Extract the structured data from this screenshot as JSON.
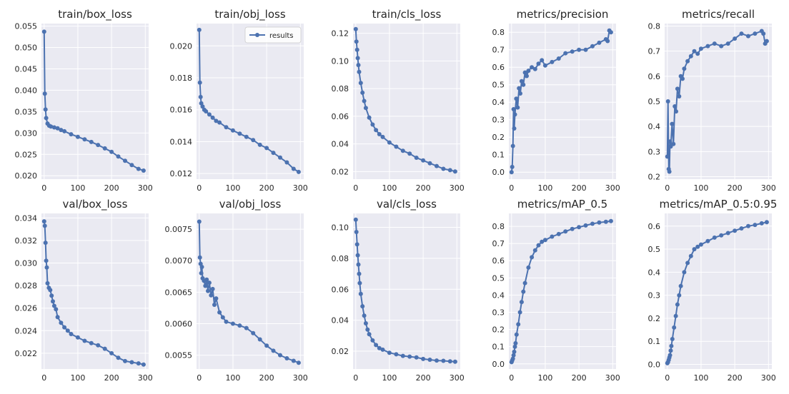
{
  "figure": {
    "background": "#ffffff",
    "panel_bg": "#eaeaf2",
    "grid_color": "#ffffff",
    "line_color": "#4c72b0",
    "text_color": "#262626",
    "grid": true,
    "legend": {
      "label": "results",
      "placement": "upper-right",
      "panel": "train/obj_loss"
    }
  },
  "chart_data": [
    {
      "type": "line",
      "title": "train/box_loss",
      "series": [
        {
          "name": "results",
          "x": [
            0,
            2,
            4,
            6,
            10,
            15,
            20,
            30,
            40,
            50,
            60,
            80,
            100,
            120,
            140,
            160,
            180,
            200,
            220,
            240,
            260,
            280,
            295
          ],
          "y": [
            0.0537,
            0.0392,
            0.0355,
            0.0335,
            0.0322,
            0.0317,
            0.0315,
            0.0313,
            0.0311,
            0.0307,
            0.0304,
            0.0297,
            0.0291,
            0.0285,
            0.0279,
            0.0272,
            0.0264,
            0.0256,
            0.0245,
            0.0235,
            0.0225,
            0.0216,
            0.0212
          ]
        }
      ],
      "xlim": [
        -8,
        310
      ],
      "ylim": [
        0.0192,
        0.0556
      ],
      "xticks": [
        "0",
        "100",
        "200",
        "300"
      ],
      "yticks": [
        "0.020",
        "0.025",
        "0.030",
        "0.035",
        "0.040",
        "0.045",
        "0.050",
        "0.055"
      ]
    },
    {
      "type": "line",
      "title": "train/obj_loss",
      "series": [
        {
          "name": "results",
          "x": [
            0,
            2,
            4,
            6,
            10,
            15,
            20,
            30,
            40,
            50,
            60,
            80,
            100,
            120,
            140,
            160,
            180,
            200,
            220,
            240,
            260,
            280,
            295
          ],
          "y": [
            0.021,
            0.0177,
            0.0168,
            0.0164,
            0.0162,
            0.016,
            0.0159,
            0.0157,
            0.0155,
            0.0153,
            0.0152,
            0.0149,
            0.0147,
            0.0145,
            0.0143,
            0.0141,
            0.0138,
            0.0136,
            0.0133,
            0.013,
            0.0127,
            0.0123,
            0.0121
          ]
        }
      ],
      "xlim": [
        -8,
        310
      ],
      "ylim": [
        0.01165,
        0.0214
      ],
      "xticks": [
        "0",
        "100",
        "200",
        "300"
      ],
      "yticks": [
        "0.012",
        "0.014",
        "0.016",
        "0.018",
        "0.020"
      ]
    },
    {
      "type": "line",
      "title": "train/cls_loss",
      "series": [
        {
          "name": "results",
          "x": [
            0,
            2,
            4,
            6,
            8,
            10,
            15,
            20,
            25,
            30,
            40,
            50,
            60,
            70,
            80,
            100,
            120,
            140,
            160,
            180,
            200,
            220,
            240,
            260,
            280,
            295
          ],
          "y": [
            0.123,
            0.114,
            0.108,
            0.102,
            0.097,
            0.092,
            0.084,
            0.077,
            0.071,
            0.066,
            0.059,
            0.054,
            0.05,
            0.047,
            0.045,
            0.041,
            0.038,
            0.035,
            0.033,
            0.03,
            0.028,
            0.026,
            0.024,
            0.022,
            0.021,
            0.02
          ]
        }
      ],
      "xlim": [
        -8,
        310
      ],
      "ylim": [
        0.0145,
        0.127
      ],
      "xticks": [
        "0",
        "100",
        "200",
        "300"
      ],
      "yticks": [
        "0.02",
        "0.04",
        "0.06",
        "0.08",
        "0.10",
        "0.12"
      ]
    },
    {
      "type": "line",
      "title": "metrics/precision",
      "series": [
        {
          "name": "results",
          "x": [
            0,
            2,
            4,
            6,
            8,
            10,
            14,
            18,
            22,
            26,
            30,
            35,
            40,
            45,
            50,
            60,
            70,
            80,
            90,
            100,
            120,
            140,
            160,
            180,
            200,
            220,
            240,
            260,
            280,
            285,
            290,
            295
          ],
          "y": [
            0.0,
            0.03,
            0.15,
            0.36,
            0.25,
            0.33,
            0.42,
            0.37,
            0.48,
            0.45,
            0.52,
            0.5,
            0.57,
            0.55,
            0.58,
            0.6,
            0.59,
            0.62,
            0.64,
            0.61,
            0.63,
            0.65,
            0.68,
            0.69,
            0.7,
            0.7,
            0.72,
            0.74,
            0.76,
            0.75,
            0.81,
            0.8
          ]
        }
      ],
      "xlim": [
        -8,
        310
      ],
      "ylim": [
        -0.04,
        0.85
      ],
      "xticks": [
        "0",
        "100",
        "200",
        "300"
      ],
      "yticks": [
        "0.0",
        "0.1",
        "0.2",
        "0.3",
        "0.4",
        "0.5",
        "0.6",
        "0.7",
        "0.8"
      ]
    },
    {
      "type": "line",
      "title": "metrics/recall",
      "series": [
        {
          "name": "results",
          "x": [
            0,
            2,
            4,
            6,
            8,
            10,
            14,
            18,
            22,
            26,
            30,
            35,
            40,
            45,
            50,
            60,
            70,
            80,
            90,
            100,
            120,
            140,
            160,
            180,
            200,
            220,
            240,
            260,
            280,
            285,
            290,
            295
          ],
          "y": [
            0.28,
            0.5,
            0.23,
            0.22,
            0.34,
            0.32,
            0.41,
            0.33,
            0.48,
            0.46,
            0.55,
            0.52,
            0.6,
            0.59,
            0.63,
            0.66,
            0.68,
            0.7,
            0.69,
            0.71,
            0.72,
            0.73,
            0.72,
            0.73,
            0.75,
            0.77,
            0.76,
            0.77,
            0.78,
            0.77,
            0.73,
            0.74
          ]
        }
      ],
      "xlim": [
        -8,
        310
      ],
      "ylim": [
        0.19,
        0.81
      ],
      "xticks": [
        "0",
        "100",
        "200",
        "300"
      ],
      "yticks": [
        "0.2",
        "0.3",
        "0.4",
        "0.5",
        "0.6",
        "0.7",
        "0.8"
      ]
    },
    {
      "type": "line",
      "title": "val/box_loss",
      "series": [
        {
          "name": "results",
          "x": [
            0,
            2,
            4,
            6,
            8,
            10,
            14,
            18,
            22,
            26,
            30,
            35,
            40,
            50,
            60,
            70,
            80,
            100,
            120,
            140,
            160,
            180,
            200,
            220,
            240,
            260,
            280,
            295
          ],
          "y": [
            0.0337,
            0.0333,
            0.0318,
            0.0302,
            0.0296,
            0.0282,
            0.0278,
            0.0276,
            0.0271,
            0.0266,
            0.0262,
            0.0259,
            0.0252,
            0.0247,
            0.0243,
            0.024,
            0.0237,
            0.0234,
            0.0231,
            0.0229,
            0.0227,
            0.0224,
            0.022,
            0.0216,
            0.0213,
            0.0212,
            0.0211,
            0.021
          ]
        }
      ],
      "xlim": [
        -8,
        310
      ],
      "ylim": [
        0.0206,
        0.0344
      ],
      "xticks": [
        "0",
        "100",
        "200",
        "300"
      ],
      "yticks": [
        "0.022",
        "0.024",
        "0.026",
        "0.028",
        "0.030",
        "0.032",
        "0.034"
      ]
    },
    {
      "type": "line",
      "title": "val/obj_loss",
      "series": [
        {
          "name": "results",
          "x": [
            0,
            2,
            4,
            6,
            8,
            10,
            14,
            18,
            22,
            26,
            30,
            35,
            40,
            45,
            50,
            60,
            70,
            80,
            100,
            120,
            140,
            160,
            180,
            200,
            220,
            240,
            260,
            280,
            295
          ],
          "y": [
            0.00762,
            0.00705,
            0.00695,
            0.0068,
            0.0069,
            0.00672,
            0.00668,
            0.0066,
            0.0067,
            0.00652,
            0.00665,
            0.00645,
            0.00655,
            0.0063,
            0.0064,
            0.00618,
            0.0061,
            0.00603,
            0.006,
            0.00597,
            0.00593,
            0.00585,
            0.00575,
            0.00565,
            0.00557,
            0.0055,
            0.00545,
            0.00541,
            0.00538
          ]
        }
      ],
      "xlim": [
        -8,
        310
      ],
      "ylim": [
        0.00528,
        0.00775
      ],
      "xticks": [
        "0",
        "100",
        "200",
        "300"
      ],
      "yticks": [
        "0.0055",
        "0.0060",
        "0.0065",
        "0.0070",
        "0.0075"
      ]
    },
    {
      "type": "line",
      "title": "val/cls_loss",
      "series": [
        {
          "name": "results",
          "x": [
            0,
            2,
            4,
            6,
            8,
            10,
            12,
            15,
            20,
            25,
            30,
            35,
            40,
            50,
            60,
            70,
            80,
            100,
            120,
            140,
            160,
            180,
            200,
            220,
            240,
            260,
            280,
            295
          ],
          "y": [
            0.105,
            0.097,
            0.089,
            0.082,
            0.076,
            0.07,
            0.064,
            0.057,
            0.049,
            0.043,
            0.038,
            0.034,
            0.031,
            0.027,
            0.024,
            0.022,
            0.021,
            0.019,
            0.018,
            0.017,
            0.0165,
            0.016,
            0.015,
            0.0145,
            0.014,
            0.0138,
            0.0135,
            0.0132
          ]
        }
      ],
      "xlim": [
        -8,
        310
      ],
      "ylim": [
        0.0085,
        0.109
      ],
      "xticks": [
        "0",
        "100",
        "200",
        "300"
      ],
      "yticks": [
        "0.02",
        "0.04",
        "0.06",
        "0.08",
        "0.10"
      ]
    },
    {
      "type": "line",
      "title": "metrics/mAP_0.5",
      "series": [
        {
          "name": "results",
          "x": [
            0,
            2,
            4,
            6,
            8,
            10,
            12,
            15,
            20,
            25,
            30,
            35,
            40,
            50,
            60,
            70,
            80,
            90,
            100,
            120,
            140,
            160,
            180,
            200,
            220,
            240,
            260,
            280,
            295
          ],
          "y": [
            0.01,
            0.02,
            0.03,
            0.05,
            0.07,
            0.1,
            0.12,
            0.17,
            0.23,
            0.3,
            0.36,
            0.42,
            0.47,
            0.56,
            0.62,
            0.66,
            0.69,
            0.71,
            0.72,
            0.74,
            0.755,
            0.77,
            0.785,
            0.795,
            0.805,
            0.815,
            0.822,
            0.826,
            0.83
          ]
        }
      ],
      "xlim": [
        -8,
        310
      ],
      "ylim": [
        -0.03,
        0.875
      ],
      "xticks": [
        "0",
        "100",
        "200",
        "300"
      ],
      "yticks": [
        "0.0",
        "0.1",
        "0.2",
        "0.3",
        "0.4",
        "0.5",
        "0.6",
        "0.7",
        "0.8"
      ]
    },
    {
      "type": "line",
      "title": "metrics/mAP_0.5:0.95",
      "series": [
        {
          "name": "results",
          "x": [
            0,
            2,
            4,
            6,
            8,
            10,
            12,
            15,
            20,
            25,
            30,
            35,
            40,
            50,
            60,
            70,
            80,
            90,
            100,
            120,
            140,
            160,
            180,
            200,
            220,
            240,
            260,
            280,
            295
          ],
          "y": [
            0.005,
            0.01,
            0.02,
            0.03,
            0.04,
            0.06,
            0.08,
            0.11,
            0.16,
            0.21,
            0.26,
            0.3,
            0.34,
            0.4,
            0.44,
            0.47,
            0.5,
            0.51,
            0.52,
            0.535,
            0.55,
            0.56,
            0.57,
            0.58,
            0.59,
            0.6,
            0.605,
            0.612,
            0.617
          ]
        }
      ],
      "xlim": [
        -8,
        310
      ],
      "ylim": [
        -0.02,
        0.655
      ],
      "xticks": [
        "0",
        "100",
        "200",
        "300"
      ],
      "yticks": [
        "0.0",
        "0.1",
        "0.2",
        "0.3",
        "0.4",
        "0.5",
        "0.6"
      ]
    }
  ]
}
